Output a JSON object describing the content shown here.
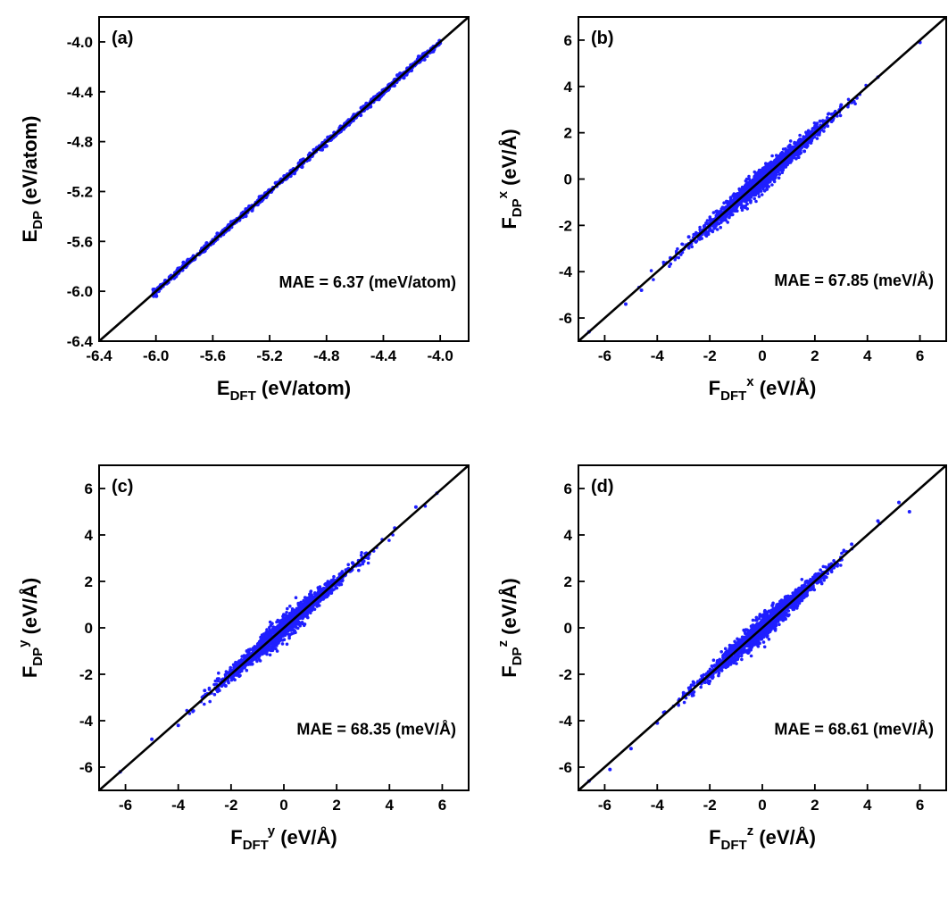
{
  "colors": {
    "points": "#1f1fff",
    "diagonal": "#000000",
    "frame": "#000000"
  },
  "chart_data": [
    {
      "type": "scatter",
      "panel_label": "(a)",
      "annotation": "MAE = 6.37 (meV/atom)",
      "xlabel": {
        "main": "E",
        "sub": "DFT",
        "sup": "",
        "unit": " (eV/atom)"
      },
      "ylabel": {
        "main": "E",
        "sub": "DP",
        "sup": "",
        "unit": " (eV/atom)"
      },
      "xlim": [
        -6.4,
        -3.8
      ],
      "ylim": [
        -6.4,
        -3.8
      ],
      "xticks": [
        -6.4,
        -6.0,
        -5.6,
        -5.2,
        -4.8,
        -4.4,
        -4.0
      ],
      "yticks": [
        -6.4,
        -6.0,
        -5.6,
        -5.2,
        -4.8,
        -4.4,
        -4.0
      ],
      "tick_labels_x": [
        "-6.4",
        "-6.0",
        "-5.6",
        "-5.2",
        "-4.8",
        "-4.4",
        "-4.0"
      ],
      "tick_labels_y": [
        "-6.4",
        "-6.0",
        "-5.6",
        "-5.2",
        "-4.8",
        "-4.4",
        "-4.0"
      ],
      "reference_line": "y = x",
      "data_range": [
        -6.02,
        -4.0
      ],
      "series": [
        {
          "points": [
            [
              -6.02,
              -6.02
            ],
            [
              -5.95,
              -5.96
            ],
            [
              -5.9,
              -5.9
            ],
            [
              -5.82,
              -5.83
            ],
            [
              -5.75,
              -5.74
            ],
            [
              -5.7,
              -5.7
            ],
            [
              -5.64,
              -5.65
            ],
            [
              -5.58,
              -5.58
            ],
            [
              -5.5,
              -5.49
            ],
            [
              -5.42,
              -5.43
            ],
            [
              -5.35,
              -5.34
            ],
            [
              -5.25,
              -5.25
            ],
            [
              -5.15,
              -5.15
            ],
            [
              -5.05,
              -5.04
            ],
            [
              -4.97,
              -4.98
            ],
            [
              -4.9,
              -4.9
            ],
            [
              -4.82,
              -4.81
            ],
            [
              -4.7,
              -4.7
            ],
            [
              -4.6,
              -4.59
            ],
            [
              -4.55,
              -4.55
            ],
            [
              -4.42,
              -4.42
            ],
            [
              -4.3,
              -4.3
            ],
            [
              -4.18,
              -4.19
            ],
            [
              -4.05,
              -4.05
            ],
            [
              -4.0,
              -4.01
            ]
          ]
        }
      ]
    },
    {
      "type": "scatter",
      "panel_label": "(b)",
      "annotation": "MAE = 67.85 (meV/Å)",
      "xlabel": {
        "main": "F",
        "sub": "DFT",
        "sup": "x",
        "unit": " (eV/Å)"
      },
      "ylabel": {
        "main": "F",
        "sub": "DP",
        "sup": "x",
        "unit": " (eV/Å)"
      },
      "xlim": [
        -7,
        7
      ],
      "ylim": [
        -7,
        7
      ],
      "xticks": [
        -6,
        -4,
        -2,
        0,
        2,
        4,
        6
      ],
      "yticks": [
        -6,
        -4,
        -2,
        0,
        2,
        4,
        6
      ],
      "tick_labels_x": [
        "-6",
        "-4",
        "-2",
        "0",
        "2",
        "4",
        "6"
      ],
      "tick_labels_y": [
        "-6",
        "-4",
        "-2",
        "0",
        "2",
        "4",
        "6"
      ],
      "reference_line": "y = x",
      "data_range": [
        -6.6,
        6.2
      ],
      "series": [
        {
          "points": [
            [
              -6.6,
              -6.6
            ],
            [
              -5.2,
              -5.4
            ],
            [
              -4.6,
              -4.8
            ],
            [
              -3.5,
              -3.4
            ],
            [
              -2.8,
              -2.5
            ],
            [
              -2.0,
              -2.2
            ],
            [
              -1.2,
              -0.8
            ],
            [
              -0.5,
              -0.9
            ],
            [
              0.0,
              0.4
            ],
            [
              0.5,
              0.1
            ],
            [
              1.0,
              1.4
            ],
            [
              1.6,
              1.2
            ],
            [
              2.2,
              2.5
            ],
            [
              3.0,
              3.2
            ],
            [
              3.6,
              3.5
            ],
            [
              4.4,
              4.4
            ],
            [
              6.0,
              5.9
            ]
          ]
        }
      ]
    },
    {
      "type": "scatter",
      "panel_label": "(c)",
      "annotation": "MAE = 68.35 (meV/Å)",
      "xlabel": {
        "main": "F",
        "sub": "DFT",
        "sup": "y",
        "unit": " (eV/Å)"
      },
      "ylabel": {
        "main": "F",
        "sub": "DP",
        "sup": "y",
        "unit": " (eV/Å)"
      },
      "xlim": [
        -7,
        7
      ],
      "ylim": [
        -7,
        7
      ],
      "xticks": [
        -6,
        -4,
        -2,
        0,
        2,
        4,
        6
      ],
      "yticks": [
        -6,
        -4,
        -2,
        0,
        2,
        4,
        6
      ],
      "tick_labels_x": [
        "-6",
        "-4",
        "-2",
        "0",
        "2",
        "4",
        "6"
      ],
      "tick_labels_y": [
        "-6",
        "-4",
        "-2",
        "0",
        "2",
        "4",
        "6"
      ],
      "reference_line": "y = x",
      "data_range": [
        -6.2,
        5.8
      ],
      "series": [
        {
          "points": [
            [
              -6.2,
              -6.2
            ],
            [
              -5.0,
              -4.8
            ],
            [
              -4.0,
              -4.2
            ],
            [
              -3.0,
              -2.7
            ],
            [
              -2.2,
              -2.5
            ],
            [
              -1.4,
              -1.0
            ],
            [
              -0.6,
              -0.9
            ],
            [
              0.0,
              0.4
            ],
            [
              0.6,
              0.2
            ],
            [
              1.0,
              1.4
            ],
            [
              1.8,
              1.5
            ],
            [
              2.6,
              2.8
            ],
            [
              3.2,
              3.0
            ],
            [
              4.2,
              4.3
            ],
            [
              5.0,
              5.2
            ],
            [
              5.8,
              5.8
            ]
          ]
        }
      ]
    },
    {
      "type": "scatter",
      "panel_label": "(d)",
      "annotation": "MAE = 68.61 (meV/Å)",
      "xlabel": {
        "main": "F",
        "sub": "DFT",
        "sup": "z",
        "unit": " (eV/Å)"
      },
      "ylabel": {
        "main": "F",
        "sub": "DP",
        "sup": "z",
        "unit": " (eV/Å)"
      },
      "xlim": [
        -7,
        7
      ],
      "ylim": [
        -7,
        7
      ],
      "xticks": [
        -6,
        -4,
        -2,
        0,
        2,
        4,
        6
      ],
      "yticks": [
        -6,
        -4,
        -2,
        0,
        2,
        4,
        6
      ],
      "tick_labels_x": [
        "-6",
        "-4",
        "-2",
        "0",
        "2",
        "4",
        "6"
      ],
      "tick_labels_y": [
        "-6",
        "-4",
        "-2",
        "0",
        "2",
        "4",
        "6"
      ],
      "reference_line": "y = x",
      "data_range": [
        -6.6,
        5.6
      ],
      "series": [
        {
          "points": [
            [
              -6.6,
              -6.6
            ],
            [
              -5.8,
              -6.1
            ],
            [
              -5.0,
              -5.2
            ],
            [
              -4.0,
              -4.1
            ],
            [
              -3.0,
              -2.8
            ],
            [
              -2.0,
              -2.3
            ],
            [
              -1.0,
              -0.7
            ],
            [
              -0.4,
              -0.8
            ],
            [
              0.0,
              0.5
            ],
            [
              0.8,
              0.4
            ],
            [
              1.4,
              1.7
            ],
            [
              2.4,
              2.2
            ],
            [
              3.4,
              3.6
            ],
            [
              4.4,
              4.6
            ],
            [
              5.2,
              5.4
            ],
            [
              5.6,
              5.0
            ]
          ]
        }
      ]
    }
  ]
}
